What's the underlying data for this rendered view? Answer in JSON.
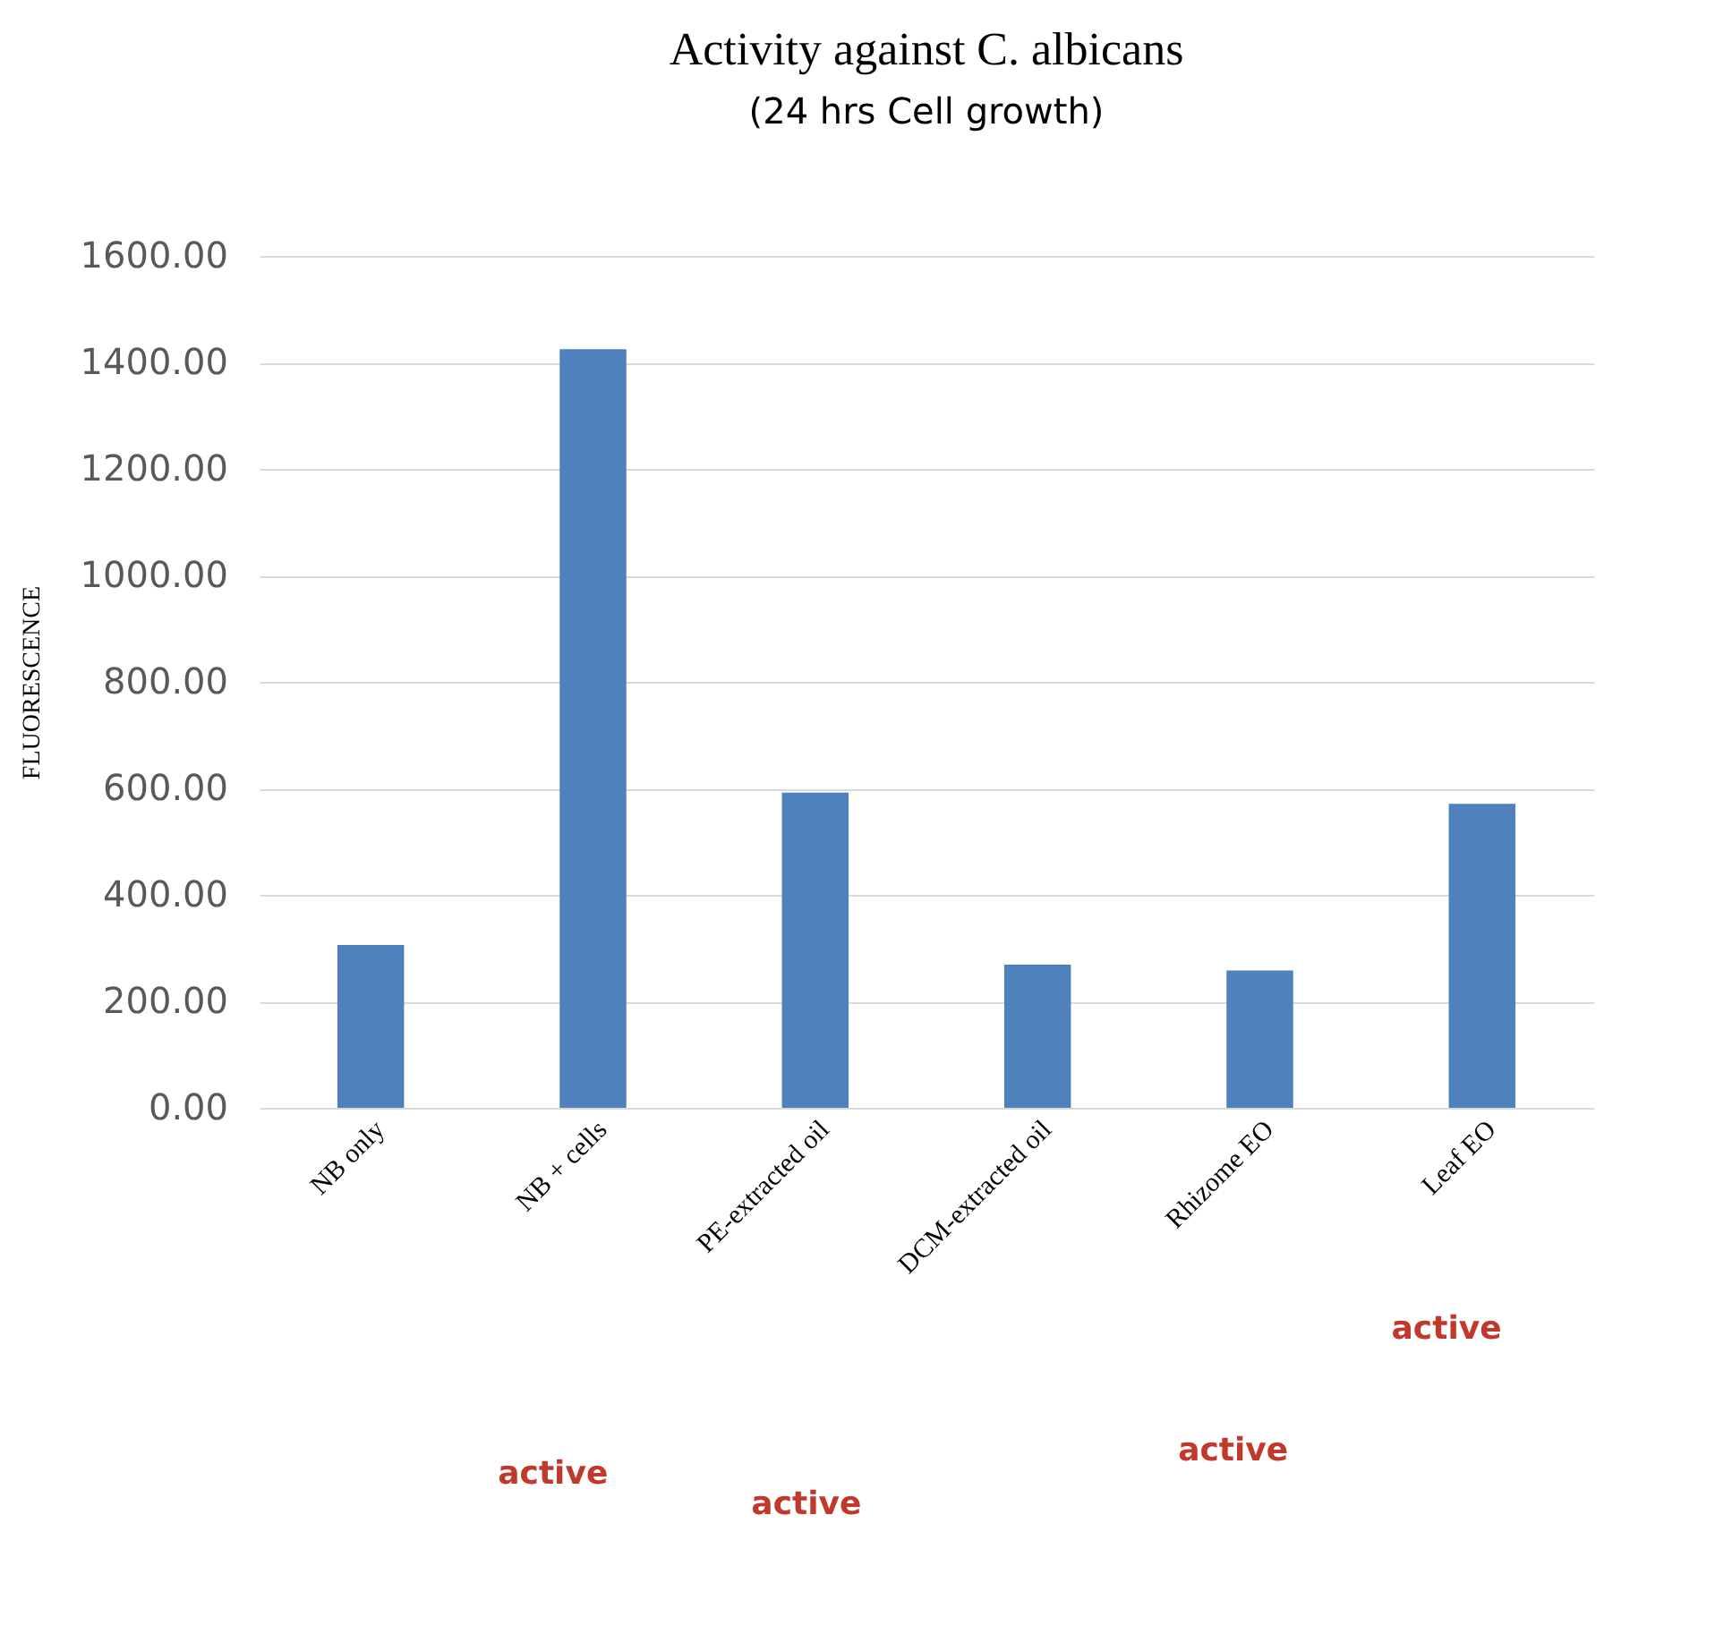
{
  "chart_data": {
    "type": "bar",
    "title": "Activity against C. albicans",
    "subtitle": "(24 hrs Cell growth)",
    "ylabel": "FLUORESCENCE",
    "categories": [
      "NB only",
      "NB + cells",
      "PE-extracted oil",
      "DCM-extracted oil",
      "Rhizome EO",
      "Leaf EO"
    ],
    "values": [
      306,
      1425,
      592,
      269,
      258,
      571
    ],
    "color": "#4f81bd",
    "ylim": [
      0,
      1600
    ],
    "yticks": [
      {
        "value": 0,
        "label": "0.00"
      },
      {
        "value": 200,
        "label": "200.00"
      },
      {
        "value": 400,
        "label": "400.00"
      },
      {
        "value": 600,
        "label": "600.00"
      },
      {
        "value": 800,
        "label": "800.00"
      },
      {
        "value": 1000,
        "label": "1000.00"
      },
      {
        "value": 1200,
        "label": "1200.00"
      },
      {
        "value": 1400,
        "label": "1400.00"
      },
      {
        "value": 1600,
        "label": "1600.00"
      }
    ],
    "grid": "y",
    "annotations": [
      "active",
      "active",
      "active",
      "active"
    ]
  }
}
